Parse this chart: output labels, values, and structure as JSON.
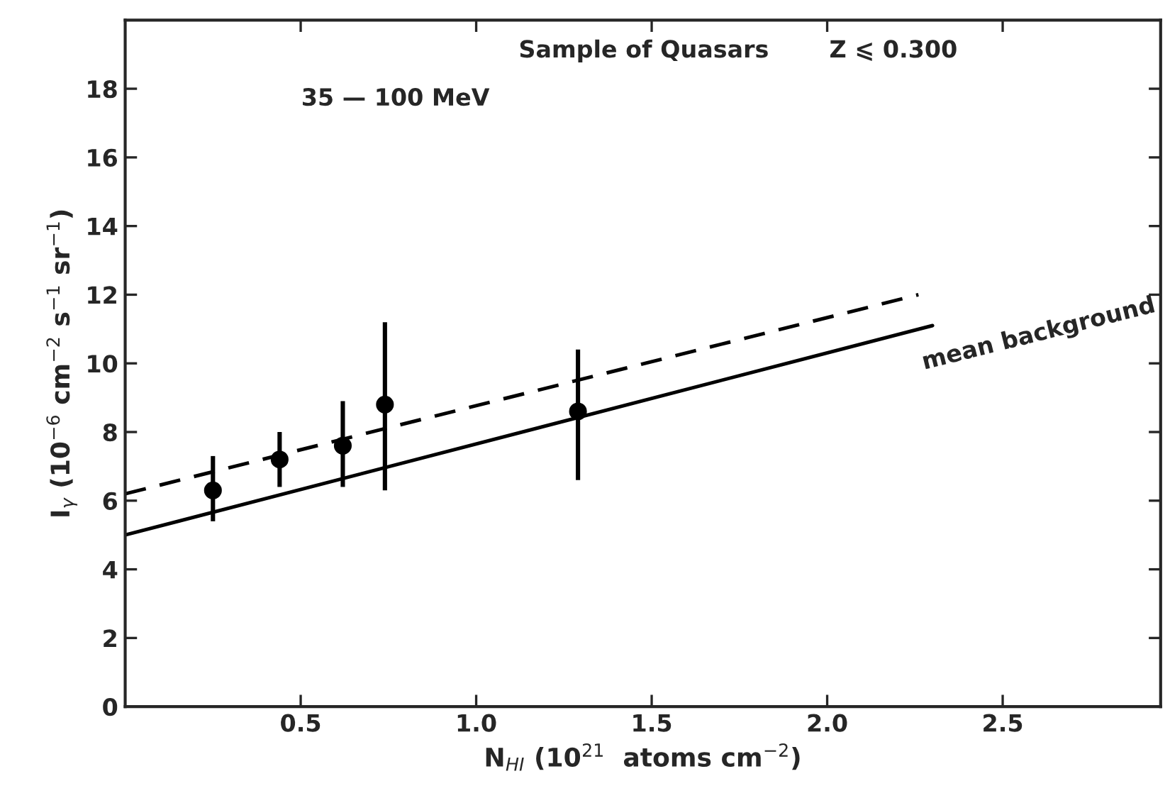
{
  "chart_data": {
    "type": "scatter",
    "xlabel": "N$_{HI}$ (10$^{21}$  atoms cm$^{−2}$)",
    "ylabel": "I$_{γ}$ (10$^{−6}$ cm$^{−2}$ s$^{−1}$ sr$^{−1}$)",
    "annotations": [
      "Sample of Quasars",
      "Z ⩽ 0.300",
      "35 — 100 MeV",
      "mean background"
    ],
    "xlim": [
      0,
      2.95
    ],
    "ylim": [
      0,
      20
    ],
    "xticks": [
      0.5,
      {
        "value": 1,
        "label": "1.0"
      },
      1.5,
      {
        "value": 2,
        "label": "2.0"
      },
      2.5
    ],
    "yticks": [
      0,
      2,
      4,
      6,
      8,
      10,
      12,
      14,
      16,
      18
    ],
    "grid": false,
    "legend": false,
    "series": [
      {
        "color": "#000000",
        "marker": "circle",
        "x": [
          0.25,
          0.44,
          0.62,
          0.74,
          1.29
        ],
        "values": [
          6.3,
          7.2,
          7.6,
          8.8,
          8.6
        ],
        "errors": [
          [
            5.4,
            7.3
          ],
          [
            6.4,
            8.0
          ],
          [
            6.4,
            8.9
          ],
          [
            6.3,
            11.2
          ],
          [
            6.6,
            10.4
          ]
        ]
      },
      {
        "type": "line",
        "color": "#000000",
        "line_style": "solid",
        "marker": "none",
        "x": [
          0,
          2.3
        ],
        "values": [
          5.0,
          11.1
        ]
      },
      {
        "type": "line",
        "color": "#000000",
        "line_style": "dashed",
        "marker": "none",
        "x": [
          0,
          2.26
        ],
        "values": [
          6.2,
          12.0
        ]
      }
    ]
  }
}
